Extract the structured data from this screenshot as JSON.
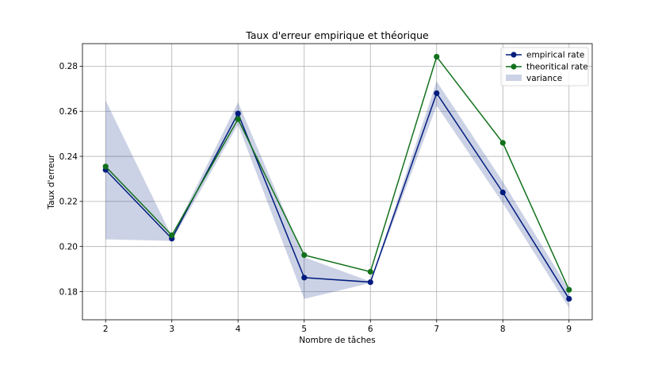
{
  "chart_data": {
    "type": "line",
    "title": "Taux d'erreur empirique et théorique",
    "xlabel": "Nombre de tâches",
    "ylabel": "Taux d'erreur",
    "x": [
      2,
      3,
      4,
      5,
      6,
      7,
      8,
      9
    ],
    "xlim": [
      1.65,
      9.35
    ],
    "ylim": [
      0.1675,
      0.29
    ],
    "xticks": [
      "2",
      "3",
      "4",
      "5",
      "6",
      "7",
      "8",
      "9"
    ],
    "yticks": [
      "0.18",
      "0.20",
      "0.22",
      "0.24",
      "0.26",
      "0.28"
    ],
    "grid": true,
    "legend_position": "top-right",
    "series": [
      {
        "name": "empirical rate",
        "values": [
          0.234,
          0.2035,
          0.259,
          0.1862,
          0.1842,
          0.268,
          0.224,
          0.1768
        ],
        "color": "#001c7f",
        "marker": "circle"
      },
      {
        "name": "theoritical rate",
        "values": [
          0.2355,
          0.205,
          0.2565,
          0.1962,
          0.1888,
          0.2842,
          0.246,
          0.1808
        ],
        "color": "#12711c",
        "marker": "circle"
      }
    ],
    "band": {
      "name": "variance",
      "color": "#001c7f",
      "opacity": 0.2,
      "lower": [
        0.2032,
        0.2025,
        0.254,
        0.1768,
        0.1838,
        0.2625,
        0.2192,
        0.1728
      ],
      "upper": [
        0.2648,
        0.2045,
        0.264,
        0.1952,
        0.1845,
        0.2733,
        0.2288,
        0.1808
      ]
    }
  }
}
